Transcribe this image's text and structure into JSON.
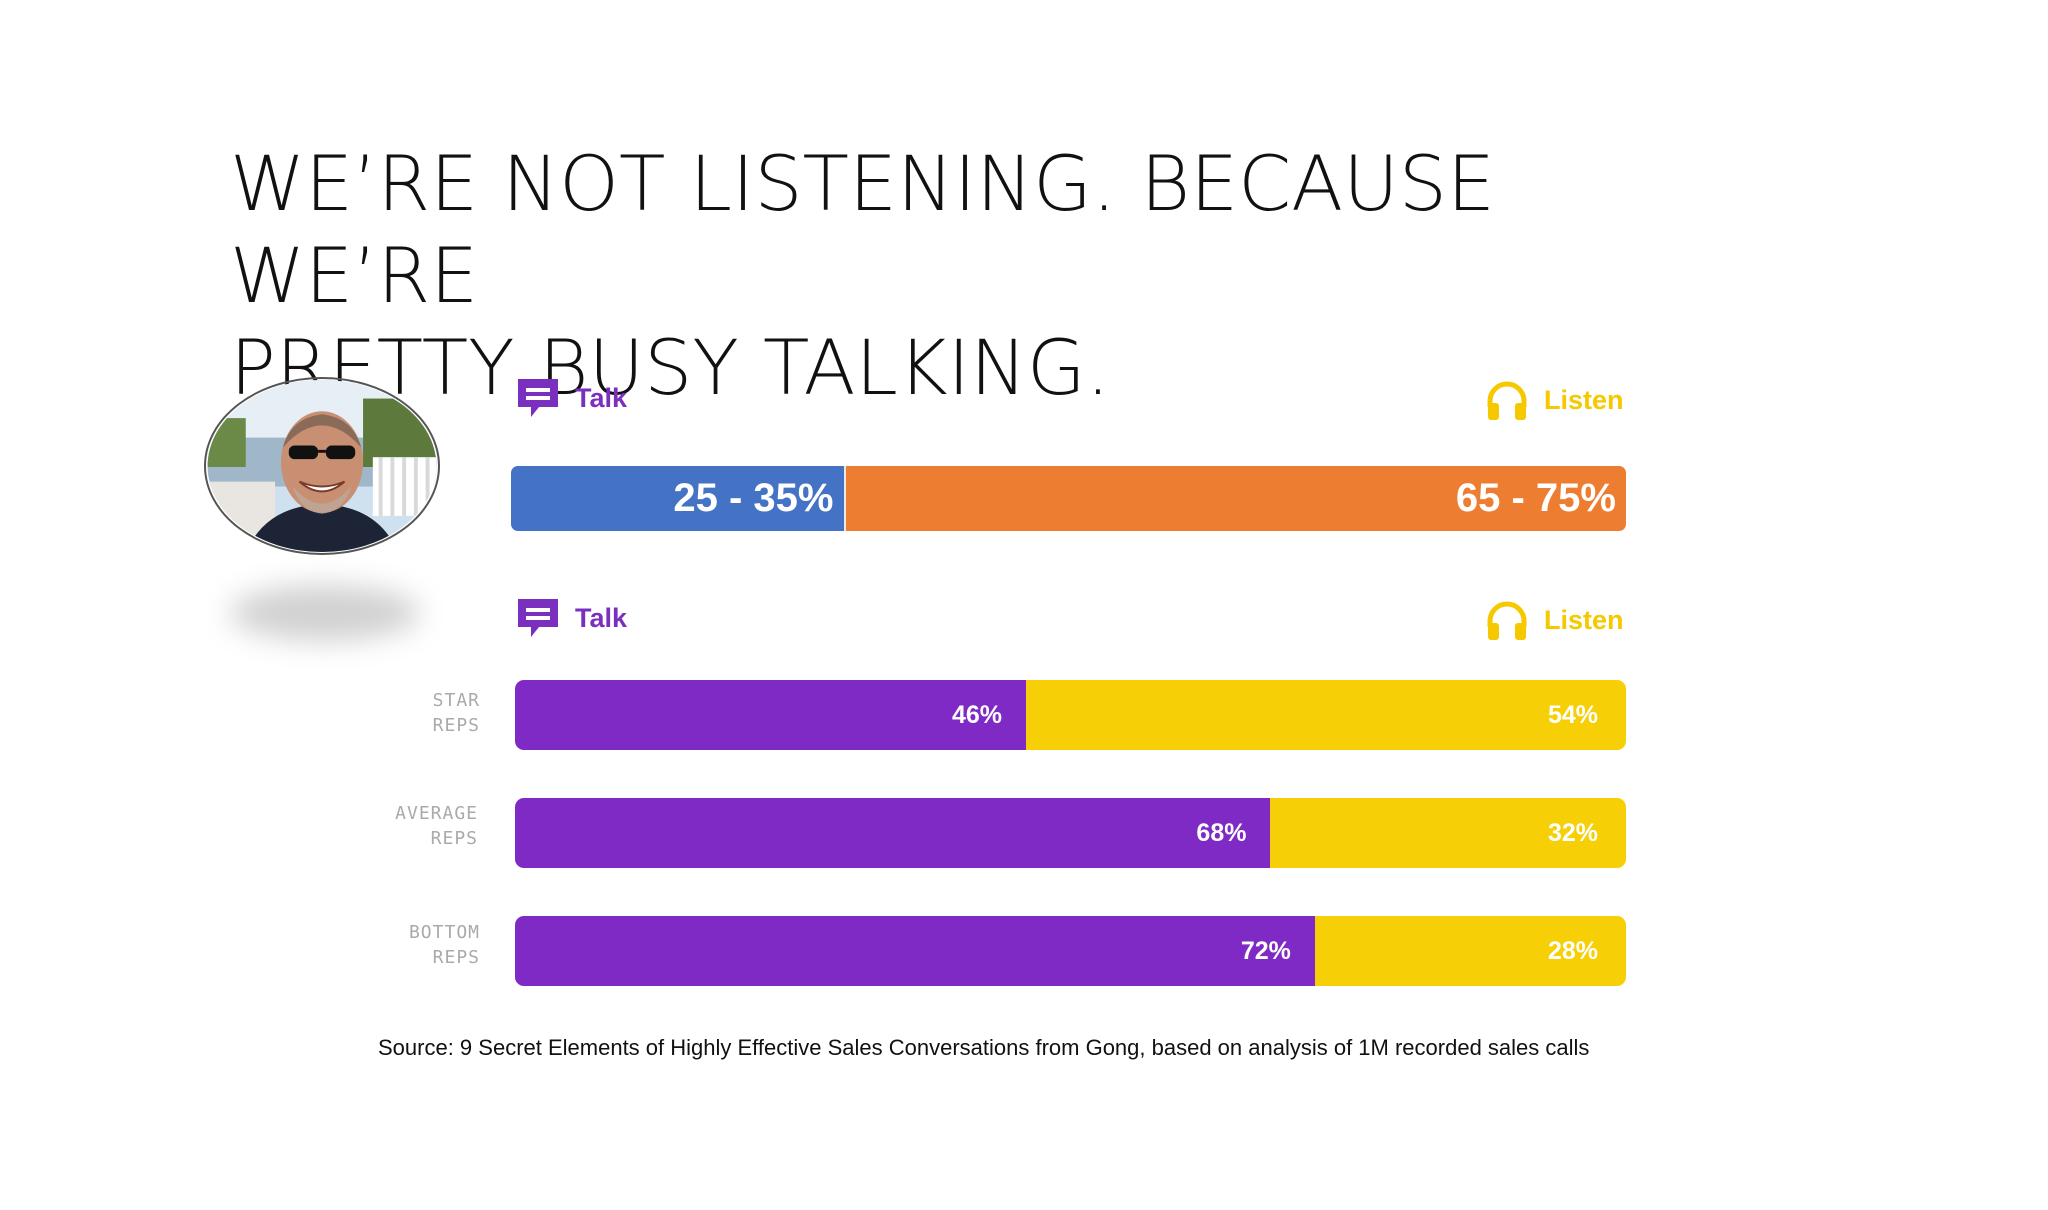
{
  "title": {
    "line1": "WE’RE NOT LISTENING. BECAUSE WE’RE",
    "line2": "PRETTY BUSY TALKING."
  },
  "legend": {
    "talk": "Talk",
    "listen": "Listen",
    "talk_icon": "chat-bubble-icon",
    "listen_icon": "headphones-icon"
  },
  "colors": {
    "overall_talk": "#4472c4",
    "overall_listen": "#ed7d31",
    "rep_talk": "#7f2ac4",
    "rep_listen": "#f7cf06"
  },
  "chart_data": [
    {
      "type": "bar",
      "orientation": "horizontal",
      "stacked": true,
      "categories": [
        ""
      ],
      "series": [
        {
          "name": "Talk",
          "values": [
            30
          ],
          "label": "25 - 35%"
        },
        {
          "name": "Listen",
          "values": [
            70
          ],
          "label": "65 - 75%"
        }
      ],
      "xlim": [
        0,
        100
      ]
    },
    {
      "type": "bar",
      "orientation": "horizontal",
      "stacked": true,
      "categories": [
        {
          "line1": "STAR",
          "line2": "REPS"
        },
        {
          "line1": "AVERAGE",
          "line2": "REPS"
        },
        {
          "line1": "BOTTOM",
          "line2": "REPS"
        }
      ],
      "series": [
        {
          "name": "Talk",
          "values": [
            46,
            68,
            72
          ],
          "labels": [
            "46%",
            "68%",
            "72%"
          ]
        },
        {
          "name": "Listen",
          "values": [
            54,
            32,
            28
          ],
          "labels": [
            "54%",
            "32%",
            "28%"
          ]
        }
      ],
      "xlim": [
        0,
        100
      ]
    }
  ],
  "source": "Source: 9 Secret Elements of Highly Effective Sales Conversations from Gong, based on analysis of 1M recorded sales calls"
}
